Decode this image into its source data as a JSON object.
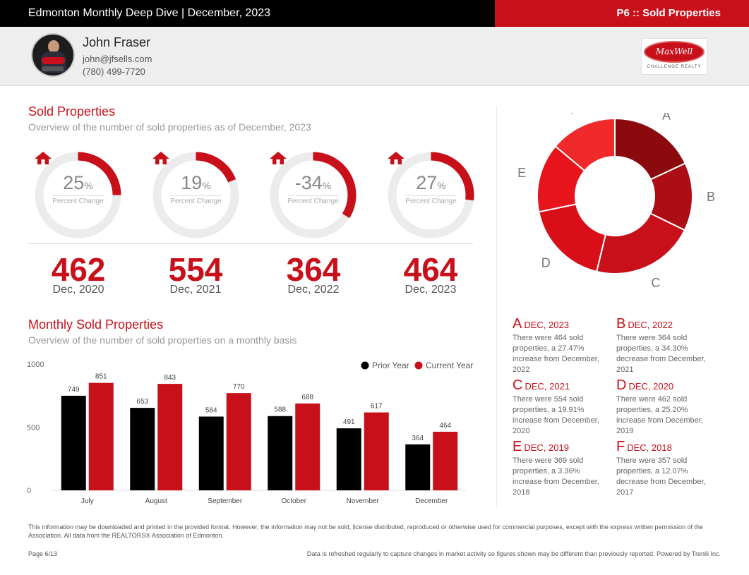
{
  "header": {
    "title": "Edmonton Monthly Deep Dive | December, 2023",
    "page_tag": "P6 :: Sold Properties"
  },
  "agent": {
    "name": "John Fraser",
    "email": "john@jfsells.com",
    "phone": "(780) 499-7720",
    "brand_name": "MaxWell",
    "brand_sub": "CHALLENGE REALTY"
  },
  "sold_section": {
    "title": "Sold Properties",
    "subtitle": "Overview of the number of sold properties as of December, 2023",
    "percent_label": "Percent Change",
    "percent_symbol": "%",
    "items": [
      {
        "percent": "25",
        "percent_value": 25,
        "count": "462",
        "date": "Dec, 2020"
      },
      {
        "percent": "19",
        "percent_value": 19,
        "count": "554",
        "date": "Dec, 2021"
      },
      {
        "percent": "-34",
        "percent_value": -34,
        "count": "364",
        "date": "Dec, 2022"
      },
      {
        "percent": "27",
        "percent_value": 27,
        "count": "464",
        "date": "Dec, 2023"
      }
    ]
  },
  "monthly_section": {
    "title": "Monthly Sold Properties",
    "subtitle": "Overview of the number of sold properties on a monthly basis"
  },
  "colors": {
    "accent": "#c8101a",
    "prior": "#000000",
    "gauge_track": "#ececec",
    "donut": [
      "#8a0a0e",
      "#ad0d14",
      "#c8101a",
      "#d80f18",
      "#e8141c",
      "#f02a2a"
    ]
  },
  "chart_data": [
    {
      "type": "bar",
      "categories": [
        "July",
        "August",
        "September",
        "October",
        "November",
        "December"
      ],
      "series": [
        {
          "name": "Prior Year",
          "values": [
            749,
            653,
            584,
            588,
            491,
            364
          ]
        },
        {
          "name": "Current Year",
          "values": [
            851,
            843,
            770,
            688,
            617,
            464
          ]
        }
      ],
      "yticks": [
        0,
        500,
        1000
      ],
      "ylim": [
        0,
        1000
      ],
      "legend": "top-right",
      "grid": false
    },
    {
      "type": "pie",
      "donut": true,
      "labels": [
        "A",
        "B",
        "C",
        "D",
        "E",
        "F"
      ],
      "values": [
        464,
        364,
        554,
        462,
        369,
        357
      ]
    }
  ],
  "notes": [
    {
      "letter": "A",
      "title": "DEC, 2023",
      "text": "There were 464 sold properties, a 27.47% increase from December, 2022"
    },
    {
      "letter": "B",
      "title": "DEC, 2022",
      "text": "There were 364 sold properties, a 34.30% decrease from December, 2021"
    },
    {
      "letter": "C",
      "title": "DEC, 2021",
      "text": "There were 554 sold properties, a 19.91% increase from December, 2020"
    },
    {
      "letter": "D",
      "title": "DEC, 2020",
      "text": "There were 462 sold properties, a 25.20% increase from December, 2019"
    },
    {
      "letter": "E",
      "title": "DEC, 2019",
      "text": "There were 369 sold properties, a 3.36% increase from December, 2018"
    },
    {
      "letter": "F",
      "title": "DEC, 2018",
      "text": "There were 357 sold properties, a 12.07% decrease from December, 2017"
    }
  ],
  "footer": {
    "disclaimer": "This information may be downloaded and printed in the provided format. However, the information may not be sold, license distributed, reproduced or otherwise used for commercial purposes, except with the express written permission of the Association. All data from the REALTORS® Association of Edmonton.",
    "page": "Page 6/13",
    "refresh": "Data is refreshed regularly to capture changes in market activity so figures shown may be different than previously reported. Powered by Trenlii Inc."
  }
}
